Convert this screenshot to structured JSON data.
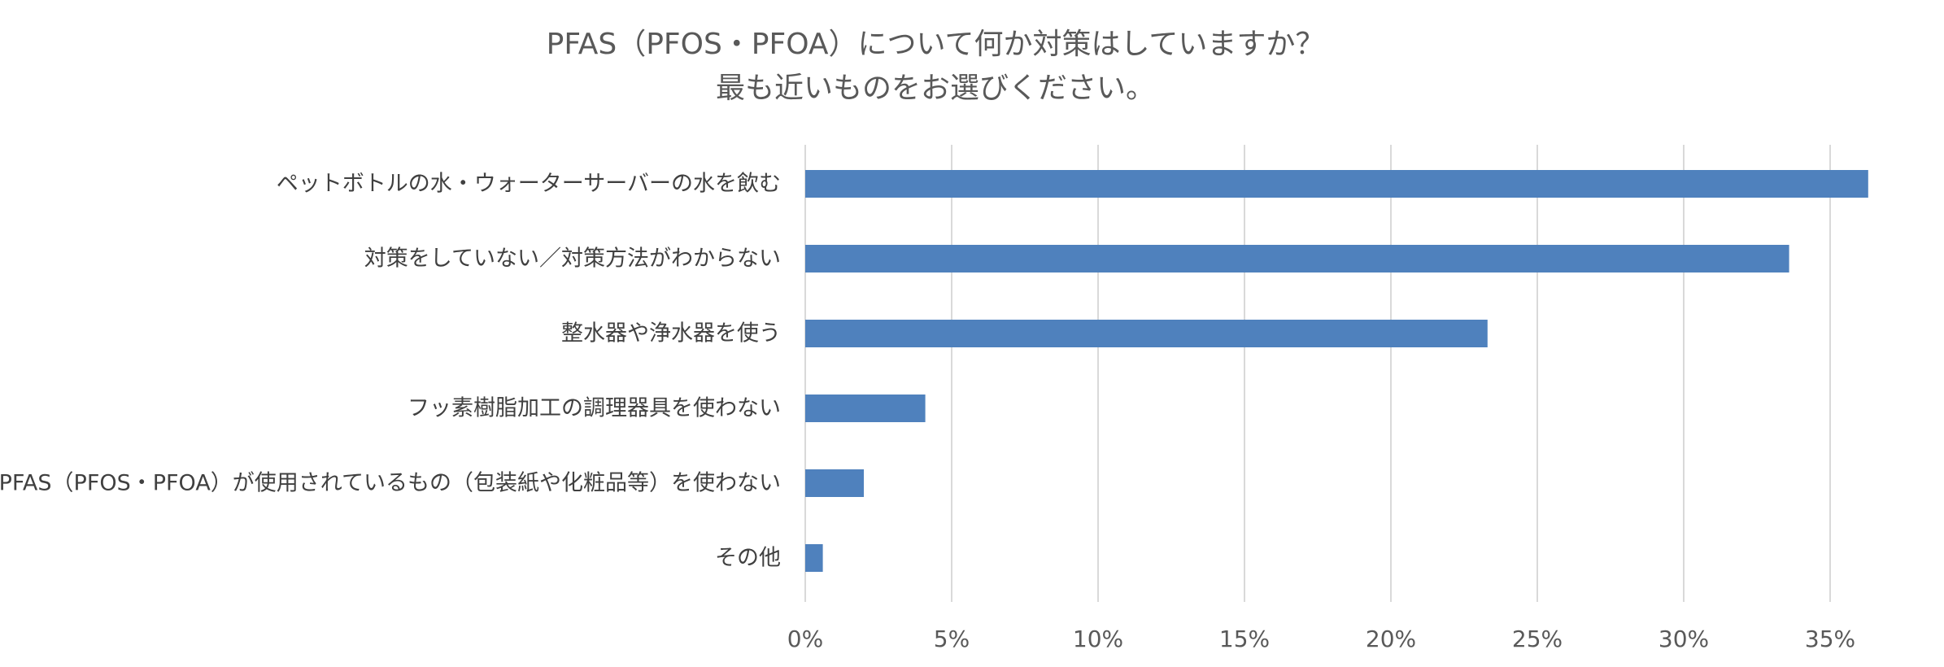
{
  "chart_data": {
    "type": "bar",
    "orientation": "horizontal",
    "title_lines": [
      "PFAS（PFOS・PFOA）について何か対策はしていますか？",
      "最も近いものをお選びください。"
    ],
    "categories": [
      "ペットボトルの水・ウォーターサーバーの水を飲む",
      "対策をしていない／対策方法がわからない",
      "整水器や浄水器を使う",
      "フッ素樹脂加工の調理器具を使わない",
      "PFAS（PFOS・PFOA）が使用されているもの（包装紙や化粧品等）を使わない",
      "その他"
    ],
    "values": [
      36.3,
      33.6,
      23.3,
      4.1,
      2.0,
      0.6
    ],
    "value_unit": "%",
    "xlim": [
      0,
      35
    ],
    "x_ticks": [
      0,
      5,
      10,
      15,
      20,
      25,
      30,
      35
    ],
    "x_tick_labels": [
      "0%",
      "5%",
      "10%",
      "15%",
      "20%",
      "25%",
      "30%",
      "35%"
    ],
    "xlabel": "",
    "ylabel": "",
    "grid": "vertical",
    "legend": "none",
    "bar_color": "#4f81bd",
    "grid_color": "#d9d9d9"
  }
}
